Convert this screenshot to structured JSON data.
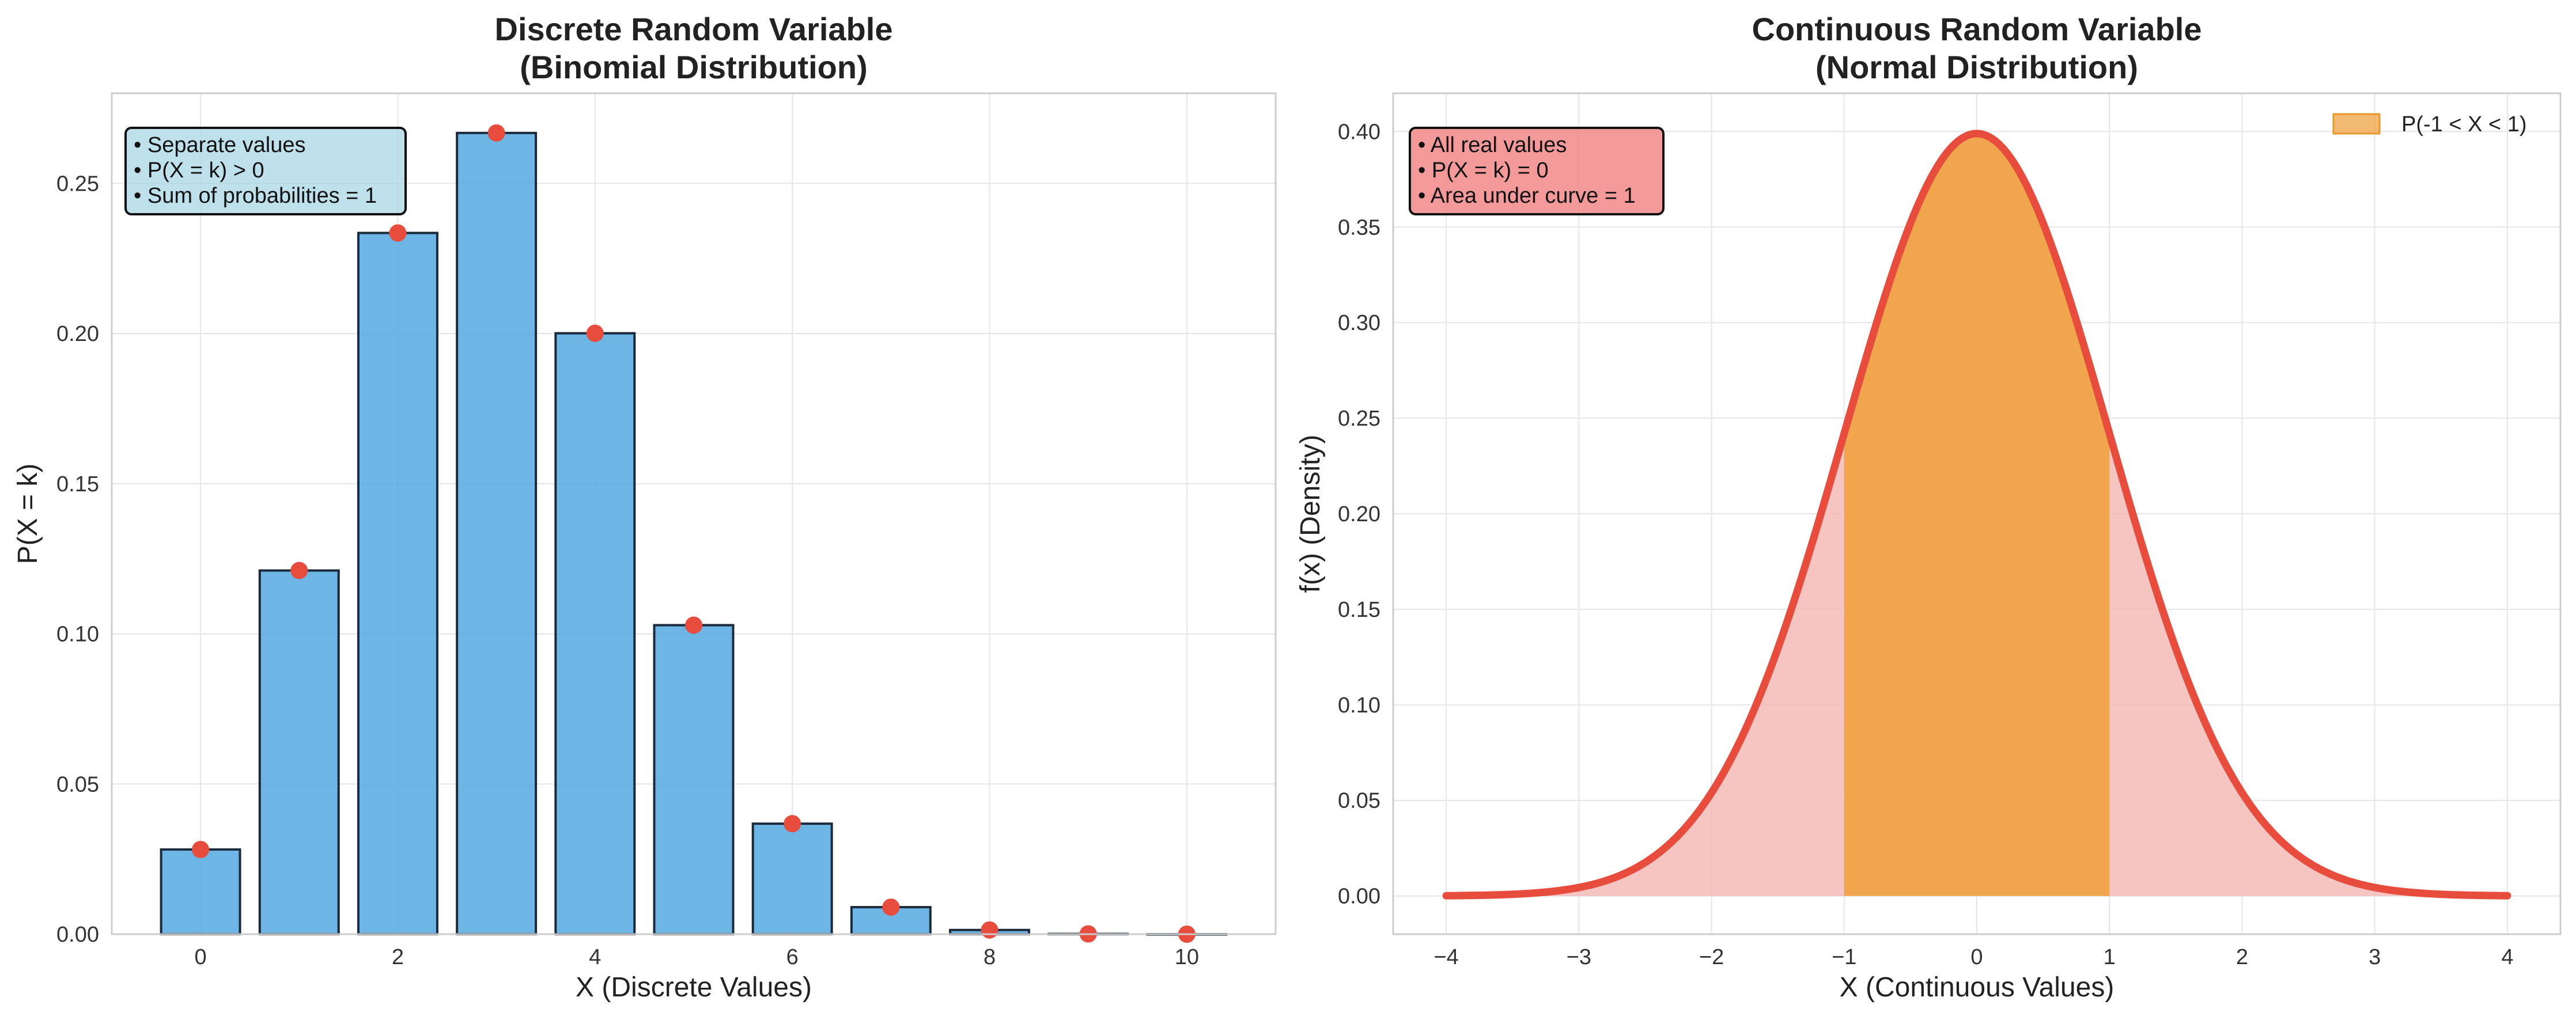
{
  "colors": {
    "bar_fill": "#5dade2",
    "bar_edge": "#1b2a3a",
    "point": "#e74c3c",
    "curve": "#e74c3c",
    "tail_fill": "#f5b7b1",
    "band_fill": "#f0a240",
    "note_left_bg": "#add8e6",
    "note_right_bg": "#f08080",
    "grid": "#e6e6e6",
    "frame": "#cccccc"
  },
  "chart_data": [
    {
      "type": "bar",
      "title_line1": "Discrete Random Variable",
      "title_line2": "(Binomial Distribution)",
      "xlabel": "X (Discrete Values)",
      "ylabel": "P(X = k)",
      "xlim": [
        -0.9,
        10.9
      ],
      "ylim": [
        0,
        0.28
      ],
      "xticks": [
        0,
        2,
        4,
        6,
        8,
        10
      ],
      "xtick_labels": [
        "0",
        "2",
        "4",
        "6",
        "8",
        "10"
      ],
      "yticks": [
        0.0,
        0.05,
        0.1,
        0.15,
        0.2,
        0.25
      ],
      "ytick_labels": [
        "0.00",
        "0.05",
        "0.10",
        "0.15",
        "0.20",
        "0.25"
      ],
      "categories": [
        0,
        1,
        2,
        3,
        4,
        5,
        6,
        7,
        8,
        9,
        10
      ],
      "values": [
        0.0282,
        0.1211,
        0.2335,
        0.2668,
        0.2001,
        0.1029,
        0.0368,
        0.009,
        0.0014,
        0.0001,
        0.0
      ],
      "annotation": [
        "• Separate values",
        "• P(X = k) > 0",
        "• Sum of probabilities = 1"
      ]
    },
    {
      "type": "area",
      "title_line1": "Continuous Random Variable",
      "title_line2": "(Normal Distribution)",
      "xlabel": "X (Continuous Values)",
      "ylabel": "f(x) (Density)",
      "xlim": [
        -4.4,
        4.4
      ],
      "ylim": [
        -0.02,
        0.42
      ],
      "xticks": [
        -4,
        -3,
        -2,
        -1,
        0,
        1,
        2,
        3,
        4
      ],
      "xtick_labels": [
        "−4",
        "−3",
        "−2",
        "−1",
        "0",
        "1",
        "2",
        "3",
        "4"
      ],
      "yticks": [
        0.0,
        0.05,
        0.1,
        0.15,
        0.2,
        0.25,
        0.3,
        0.35,
        0.4
      ],
      "ytick_labels": [
        "0.00",
        "0.05",
        "0.10",
        "0.15",
        "0.20",
        "0.25",
        "0.30",
        "0.35",
        "0.40"
      ],
      "curve": {
        "mean": 0,
        "sd": 1,
        "x_range": [
          -4,
          4
        ]
      },
      "shaded_band": [
        -1,
        1
      ],
      "legend": [
        "P(-1 < X < 1)"
      ],
      "annotation": [
        "• All real values",
        "• P(X = k) = 0",
        "• Area under curve = 1"
      ]
    }
  ]
}
